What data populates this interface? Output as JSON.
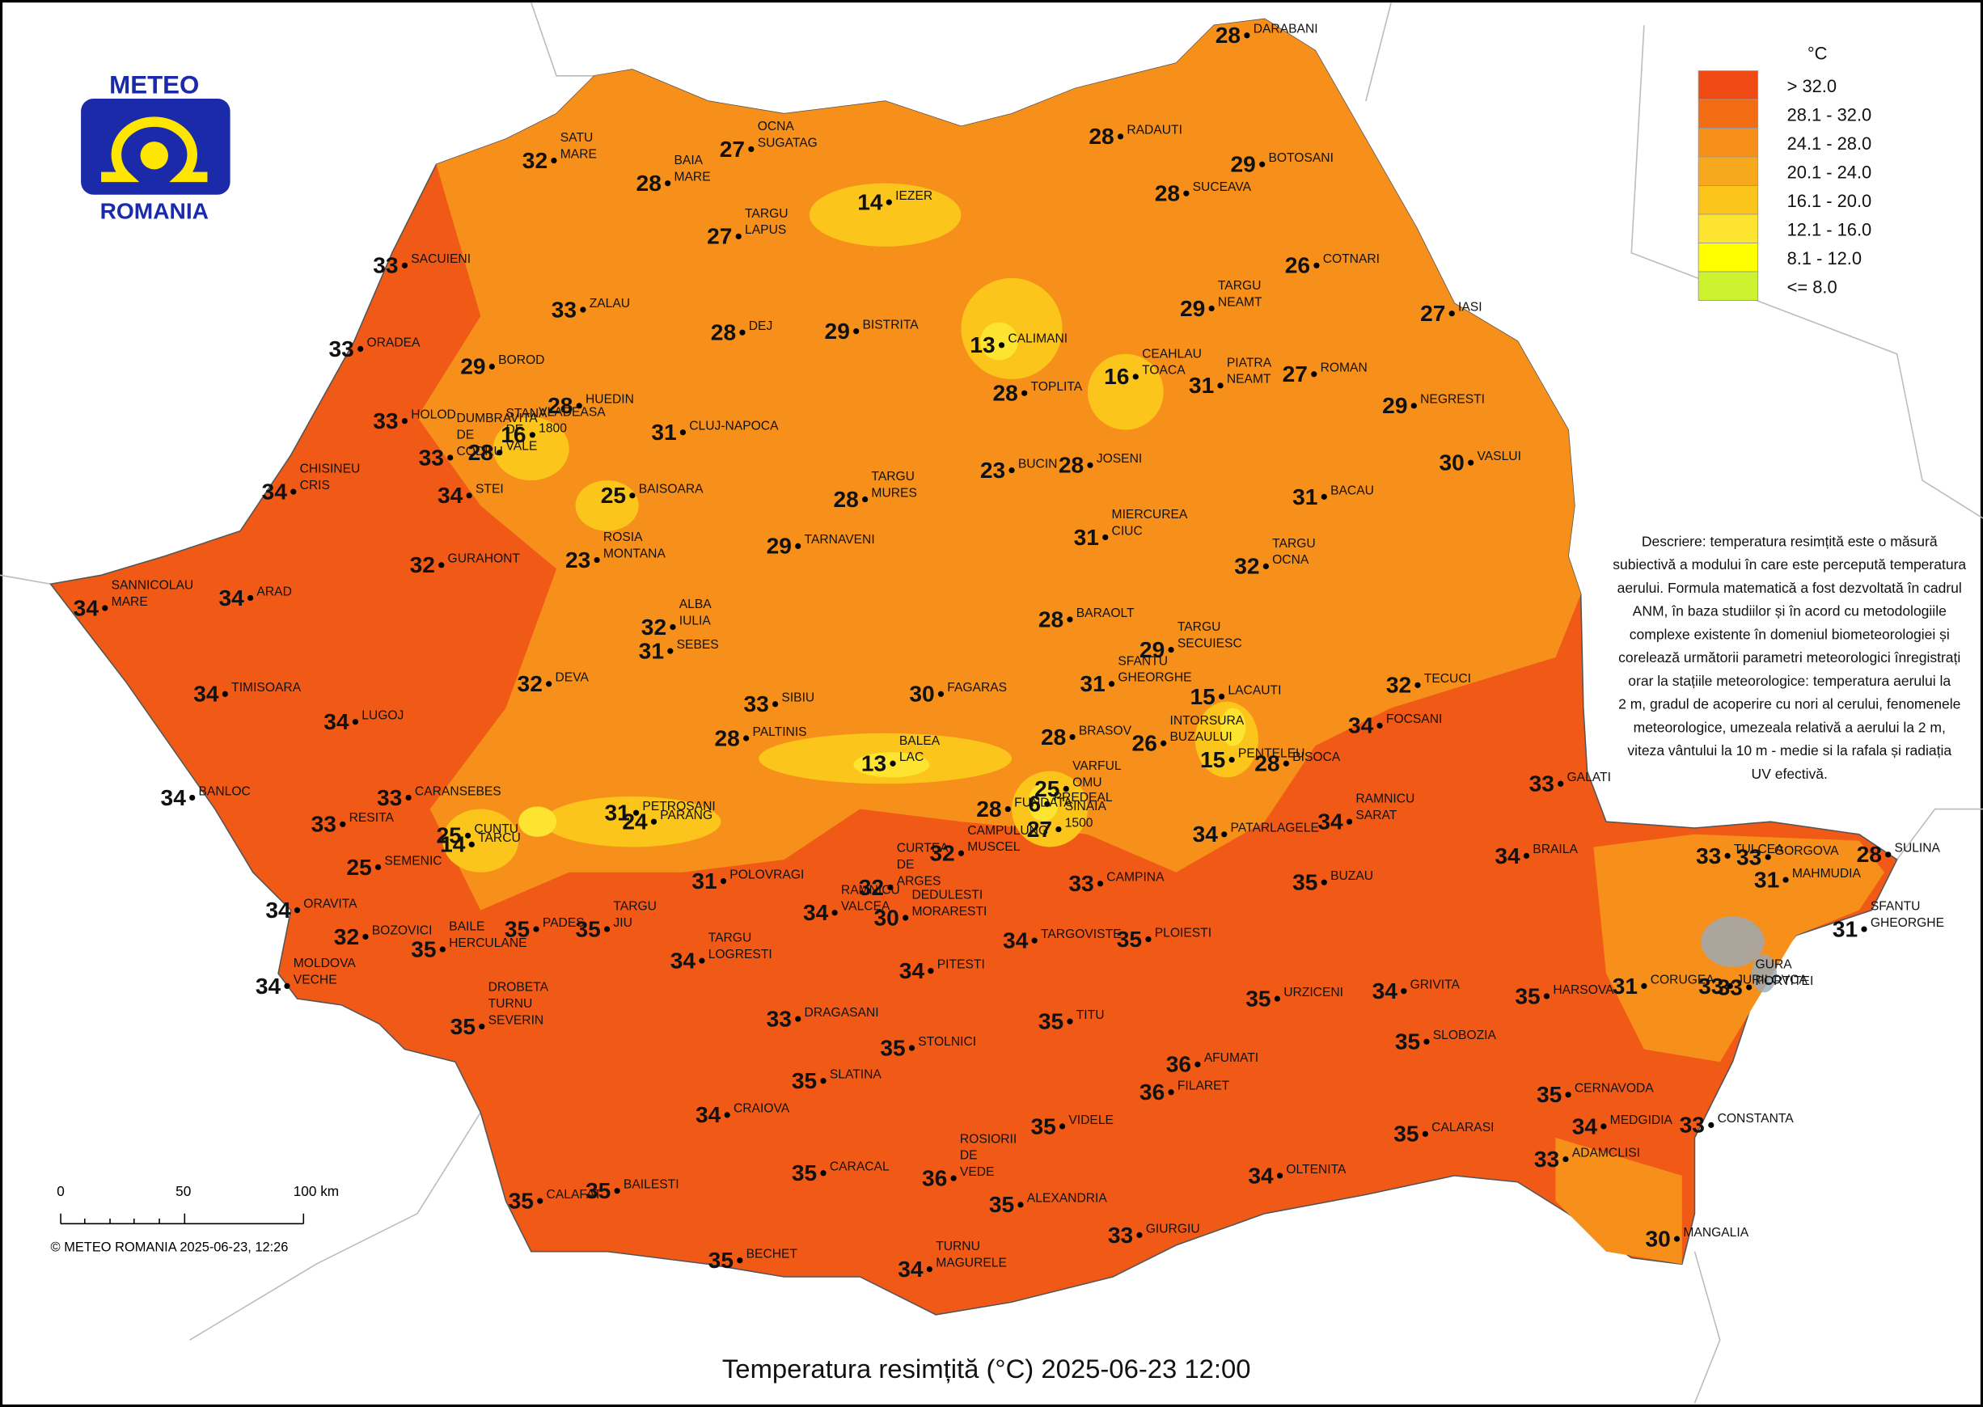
{
  "logo": {
    "top": "METEO",
    "bottom": "ROMANIA"
  },
  "title": "Temperatura resimțită (°C) 2025-06-23 12:00",
  "copyright": "© METEO ROMANIA 2025-06-23, 12:26",
  "scale": {
    "labels": [
      "0",
      "50",
      "100 km"
    ]
  },
  "legend": {
    "unit": "°C",
    "items": [
      {
        "label": "> 32.0",
        "color": "#f04a14"
      },
      {
        "label": "28.1 - 32.0",
        "color": "#f36b13"
      },
      {
        "label": "24.1 - 28.0",
        "color": "#f7901a"
      },
      {
        "label": "20.1 - 24.0",
        "color": "#f8a81c"
      },
      {
        "label": "16.1 - 20.0",
        "color": "#fbc51c"
      },
      {
        "label": "12.1 - 16.0",
        "color": "#fce431"
      },
      {
        "label": "8.1 - 12.0",
        "color": "#ffff00"
      },
      {
        "label": "<= 8.0",
        "color": "#ccf230"
      }
    ]
  },
  "description": [
    "Descriere: temperatura resimțită este o măsură",
    "subiectivă a modului în care este percepută temperatura",
    "aerului. Formula matematică a fost dezvoltată în cadrul",
    "ANM, în baza studiilor și în acord cu metodologiile",
    "complexe existente în domeniul biometeorologiei și",
    "corelează următorii parametri meteorologici înregistrați",
    "orar la stațiile meteorologice: temperatura aerului la",
    "2 m, gradul de acoperire cu nori al cerului, fenomenele",
    "meteorologice, umezeala relativă a aerului la 2 m,",
    "viteza vântului la 10 m - medie si la rafala și radiația",
    "UV efectivă."
  ],
  "stations": [
    {
      "value": 28,
      "name": [
        "DARABANI"
      ]
    },
    {
      "value": 27,
      "name": [
        "OCNA",
        "SUGATAG"
      ]
    },
    {
      "value": 32,
      "name": [
        "SATU",
        "MARE"
      ]
    },
    {
      "value": 28,
      "name": [
        "BAIA",
        "MARE"
      ]
    },
    {
      "value": 28,
      "name": [
        "RADAUTI"
      ]
    },
    {
      "value": 29,
      "name": [
        "BOTOSANI"
      ]
    },
    {
      "value": 14,
      "name": [
        "IEZER"
      ]
    },
    {
      "value": 28,
      "name": [
        "SUCEAVA"
      ]
    },
    {
      "value": 27,
      "name": [
        "TARGU",
        "LAPUS"
      ]
    },
    {
      "value": 33,
      "name": [
        "SACUIENI"
      ]
    },
    {
      "value": 26,
      "name": [
        "COTNARI"
      ]
    },
    {
      "value": 33,
      "name": [
        "ZALAU"
      ]
    },
    {
      "value": 29,
      "name": [
        "TARGU",
        "NEAMT"
      ]
    },
    {
      "value": 27,
      "name": [
        "IASI"
      ]
    },
    {
      "value": 33,
      "name": [
        "ORADEA"
      ]
    },
    {
      "value": 28,
      "name": [
        "DEJ"
      ]
    },
    {
      "value": 29,
      "name": [
        "BISTRITA"
      ]
    },
    {
      "value": 13,
      "name": [
        "CALIMANI"
      ]
    },
    {
      "value": 29,
      "name": [
        "BOROD"
      ]
    },
    {
      "value": 27,
      "name": [
        "ROMAN"
      ]
    },
    {
      "value": 16,
      "name": [
        "CEAHLAU",
        "TOACA"
      ]
    },
    {
      "value": 28,
      "name": [
        "HUEDIN"
      ]
    },
    {
      "value": 16,
      "name": [
        "VLADEASA",
        "1800"
      ]
    },
    {
      "value": 28,
      "name": [
        "TOPLITA"
      ]
    },
    {
      "value": 31,
      "name": [
        "PIATRA",
        "NEAMT"
      ]
    },
    {
      "value": 29,
      "name": [
        "NEGRESTI"
      ]
    },
    {
      "value": 33,
      "name": [
        "HOLOD"
      ]
    },
    {
      "value": 31,
      "name": [
        "CLUJ-NAPOCA"
      ]
    },
    {
      "value": 33,
      "name": [
        "DUMBRAVITA",
        "DE",
        "CODRU"
      ]
    },
    {
      "value": 28,
      "name": [
        "STANA",
        "DE",
        "VALE"
      ]
    },
    {
      "value": 30,
      "name": [
        "VASLUI"
      ]
    },
    {
      "value": 23,
      "name": [
        "BUCIN"
      ]
    },
    {
      "value": 28,
      "name": [
        "JOSENI"
      ]
    },
    {
      "value": 34,
      "name": [
        "CHISINEU",
        "CRIS"
      ]
    },
    {
      "value": 34,
      "name": [
        "STEI"
      ]
    },
    {
      "value": 25,
      "name": [
        "BAISOARA"
      ]
    },
    {
      "value": 28,
      "name": [
        "TARGU",
        "MURES"
      ]
    },
    {
      "value": 31,
      "name": [
        "BACAU"
      ]
    },
    {
      "value": 23,
      "name": [
        "ROSIA",
        "MONTANA"
      ]
    },
    {
      "value": 29,
      "name": [
        "TARNAVENI"
      ]
    },
    {
      "value": 32,
      "name": [
        "GURAHONT"
      ]
    },
    {
      "value": 31,
      "name": [
        "MIERCUREA",
        "CIUC"
      ]
    },
    {
      "value": 32,
      "name": [
        "TARGU",
        "OCNA"
      ]
    },
    {
      "value": 34,
      "name": [
        "SANNICOLAU",
        "MARE"
      ]
    },
    {
      "value": 34,
      "name": [
        "ARAD"
      ]
    },
    {
      "value": 28,
      "name": [
        "BARAOLT"
      ]
    },
    {
      "value": 32,
      "name": [
        "ALBA",
        "IULIA"
      ]
    },
    {
      "value": 31,
      "name": [
        "SEBES"
      ]
    },
    {
      "value": 29,
      "name": [
        "TARGU",
        "SECUIESC"
      ]
    },
    {
      "value": 32,
      "name": [
        "DEVA"
      ]
    },
    {
      "value": 31,
      "name": [
        "SFANTU",
        "GHEORGHE"
      ]
    },
    {
      "value": 34,
      "name": [
        "TIMISOARA"
      ]
    },
    {
      "value": 33,
      "name": [
        "SIBIU"
      ]
    },
    {
      "value": 30,
      "name": [
        "FAGARAS"
      ]
    },
    {
      "value": 15,
      "name": [
        "LACAUTI"
      ]
    },
    {
      "value": 32,
      "name": [
        "TECUCI"
      ]
    },
    {
      "value": 28,
      "name": [
        "PALTINIS"
      ]
    },
    {
      "value": 28,
      "name": [
        "BRASOV"
      ]
    },
    {
      "value": 26,
      "name": [
        "INTORSURA",
        "BUZAULUI"
      ]
    },
    {
      "value": 15,
      "name": [
        "PENTELEU"
      ]
    },
    {
      "value": 28,
      "name": [
        "BISOCA"
      ]
    },
    {
      "value": 34,
      "name": [
        "LUGOJ"
      ]
    },
    {
      "value": 34,
      "name": [
        "FOCSANI"
      ]
    },
    {
      "value": 13,
      "name": [
        "BALEA",
        "LAC"
      ]
    },
    {
      "value": 34,
      "name": [
        "BANLOC"
      ]
    },
    {
      "value": 33,
      "name": [
        "CARANSEBES"
      ]
    },
    {
      "value": 25,
      "name": [
        "VARFUL",
        "OMU"
      ]
    },
    {
      "value": 6,
      "name": [
        "PREDEAL"
      ]
    },
    {
      "value": 33,
      "name": [
        "GALATI"
      ]
    },
    {
      "value": 34,
      "name": [
        "RAMNICU",
        "SARAT"
      ]
    },
    {
      "value": 33,
      "name": [
        "RESITA"
      ]
    },
    {
      "value": 31,
      "name": [
        "PETROSANI"
      ]
    },
    {
      "value": 24,
      "name": [
        "PARANG"
      ]
    },
    {
      "value": 28,
      "name": [
        "FUNDATA"
      ]
    },
    {
      "value": 27,
      "name": [
        "SINAIA",
        "1500"
      ]
    },
    {
      "value": 25,
      "name": [
        "CUNTU"
      ]
    },
    {
      "value": 14,
      "name": [
        "TARCU"
      ]
    },
    {
      "value": 34,
      "name": [
        "PATARLAGELE"
      ]
    },
    {
      "value": 25,
      "name": [
        "SEMENIC"
      ]
    },
    {
      "value": 32,
      "name": [
        "CURTEA",
        "DE",
        "ARGES"
      ]
    },
    {
      "value": 32,
      "name": [
        "CAMPULUNG",
        "MUSCEL"
      ]
    },
    {
      "value": 31,
      "name": [
        "POLOVRAGI"
      ]
    },
    {
      "value": 33,
      "name": [
        "CAMPINA"
      ]
    },
    {
      "value": 35,
      "name": [
        "BUZAU"
      ]
    },
    {
      "value": 34,
      "name": [
        "BRAILA"
      ]
    },
    {
      "value": 33,
      "name": [
        "TULCEA"
      ]
    },
    {
      "value": 33,
      "name": [
        "GORGOVA"
      ]
    },
    {
      "value": 31,
      "name": [
        "MAHMUDIA"
      ]
    },
    {
      "value": 28,
      "name": [
        "SULINA"
      ]
    },
    {
      "value": 34,
      "name": [
        "ORAVITA"
      ]
    },
    {
      "value": 35,
      "name": [
        "PADES"
      ]
    },
    {
      "value": 35,
      "name": [
        "TARGU",
        "JIU"
      ]
    },
    {
      "value": 34,
      "name": [
        "RAMNICU",
        "VALCEA"
      ]
    },
    {
      "value": 30,
      "name": [
        "DEDULESTI",
        "MORARESTI"
      ]
    },
    {
      "value": 32,
      "name": [
        "BOZOVICI"
      ]
    },
    {
      "value": 35,
      "name": [
        "BAILE",
        "HERCULANE"
      ]
    },
    {
      "value": 34,
      "name": [
        "TARGOVISTE"
      ]
    },
    {
      "value": 35,
      "name": [
        "PLOIESTI"
      ]
    },
    {
      "value": 31,
      "name": [
        "SFANTU",
        "GHEORGHE"
      ]
    },
    {
      "value": 34,
      "name": [
        "TARGU",
        "LOGRESTI"
      ]
    },
    {
      "value": 34,
      "name": [
        "PITESTI"
      ]
    },
    {
      "value": 34,
      "name": [
        "MOLDOVA",
        "VECHE"
      ]
    },
    {
      "value": 33,
      "name": [
        "JURILOVCA"
      ]
    },
    {
      "value": 33,
      "name": [
        "GURA",
        "PORTITEI"
      ]
    },
    {
      "value": 35,
      "name": [
        "HARSOVA"
      ]
    },
    {
      "value": 31,
      "name": [
        "CORUGEA"
      ]
    },
    {
      "value": 34,
      "name": [
        "GRIVITA"
      ]
    },
    {
      "value": 35,
      "name": [
        "URZICENI"
      ]
    },
    {
      "value": 35,
      "name": [
        "DROBETA",
        "TURNU",
        "SEVERIN"
      ]
    },
    {
      "value": 33,
      "name": [
        "DRAGASANI"
      ]
    },
    {
      "value": 35,
      "name": [
        "TITU"
      ]
    },
    {
      "value": 35,
      "name": [
        "SLOBOZIA"
      ]
    },
    {
      "value": 35,
      "name": [
        "STOLNICI"
      ]
    },
    {
      "value": 36,
      "name": [
        "AFUMATI"
      ]
    },
    {
      "value": 35,
      "name": [
        "SLATINA"
      ]
    },
    {
      "value": 36,
      "name": [
        "FILARET"
      ]
    },
    {
      "value": 35,
      "name": [
        "CERNAVODA"
      ]
    },
    {
      "value": 34,
      "name": [
        "CRAIOVA"
      ]
    },
    {
      "value": 35,
      "name": [
        "VIDELE"
      ]
    },
    {
      "value": 34,
      "name": [
        "MEDGIDIA"
      ]
    },
    {
      "value": 33,
      "name": [
        "CONSTANTA"
      ]
    },
    {
      "value": 35,
      "name": [
        "CALARASI"
      ]
    },
    {
      "value": 33,
      "name": [
        "ADAMCLISI"
      ]
    },
    {
      "value": 36,
      "name": [
        "ROSIORII",
        "DE",
        "VEDE"
      ]
    },
    {
      "value": 35,
      "name": [
        "CARACAL"
      ]
    },
    {
      "value": 34,
      "name": [
        "OLTENITA"
      ]
    },
    {
      "value": 35,
      "name": [
        "CALAFAT"
      ]
    },
    {
      "value": 35,
      "name": [
        "BAILESTI"
      ]
    },
    {
      "value": 35,
      "name": [
        "ALEXANDRIA"
      ]
    },
    {
      "value": 33,
      "name": [
        "GIURGIU"
      ]
    },
    {
      "value": 30,
      "name": [
        "MANGALIA"
      ]
    },
    {
      "value": 35,
      "name": [
        "BECHET"
      ]
    },
    {
      "value": 34,
      "name": [
        "TURNU",
        "MAGURELE"
      ]
    }
  ]
}
